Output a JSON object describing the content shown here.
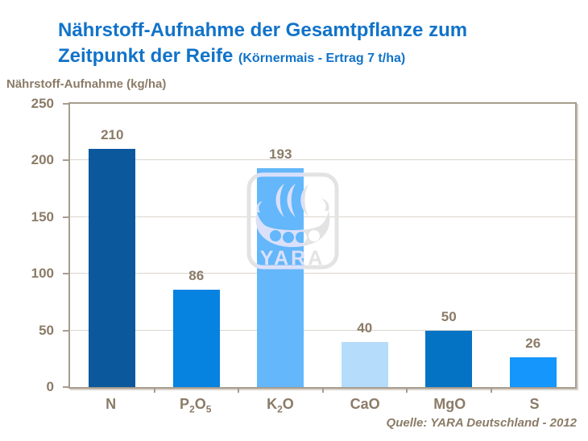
{
  "title": {
    "line1": "Nährstoff-Aufnahme der Gesamtpflanze zum",
    "line2": "Zeitpunkt der Reife",
    "subtitle": "(Körnermais - Ertrag 7 t/ha)"
  },
  "y_axis_title": "Nährstoff-Aufnahme (kg/ha)",
  "source_note": "Quelle: YARA Deutschland - 2012",
  "watermark": {
    "text": "YARA",
    "icon": "viking-ship-icon",
    "color": "#E2E2E2"
  },
  "colors": {
    "title_blue": "#1173C9",
    "text_brown": "#8B7B67",
    "frame": "#A79C8E",
    "gridline": "#DAD5CF",
    "background": "#FFFFFF"
  },
  "chart_data": {
    "type": "bar",
    "title": "Nährstoff-Aufnahme der Gesamtpflanze zum Zeitpunkt der Reife (Körnermais - Ertrag 7 t/ha)",
    "categories": [
      "N",
      "P2O5",
      "K2O",
      "CaO",
      "MgO",
      "S"
    ],
    "categories_rich": [
      [
        "N"
      ],
      [
        "P",
        {
          "sub": "2"
        },
        "O",
        {
          "sub": "5"
        }
      ],
      [
        "K",
        {
          "sub": "2"
        },
        "O"
      ],
      [
        "CaO"
      ],
      [
        "MgO"
      ],
      [
        "S"
      ]
    ],
    "values": [
      210,
      86,
      193,
      40,
      50,
      26
    ],
    "bar_colors": [
      "#0B589C",
      "#0682E0",
      "#63B7FA",
      "#B5DDFB",
      "#0473C4",
      "#1496FD"
    ],
    "xlabel": "",
    "ylabel": "Nährstoff-Aufnahme (kg/ha)",
    "ylim": [
      0,
      250
    ],
    "yticks": [
      0,
      50,
      100,
      150,
      200,
      250
    ],
    "grid": true,
    "legend_position": "none",
    "source": "Quelle: YARA Deutschland - 2012"
  }
}
